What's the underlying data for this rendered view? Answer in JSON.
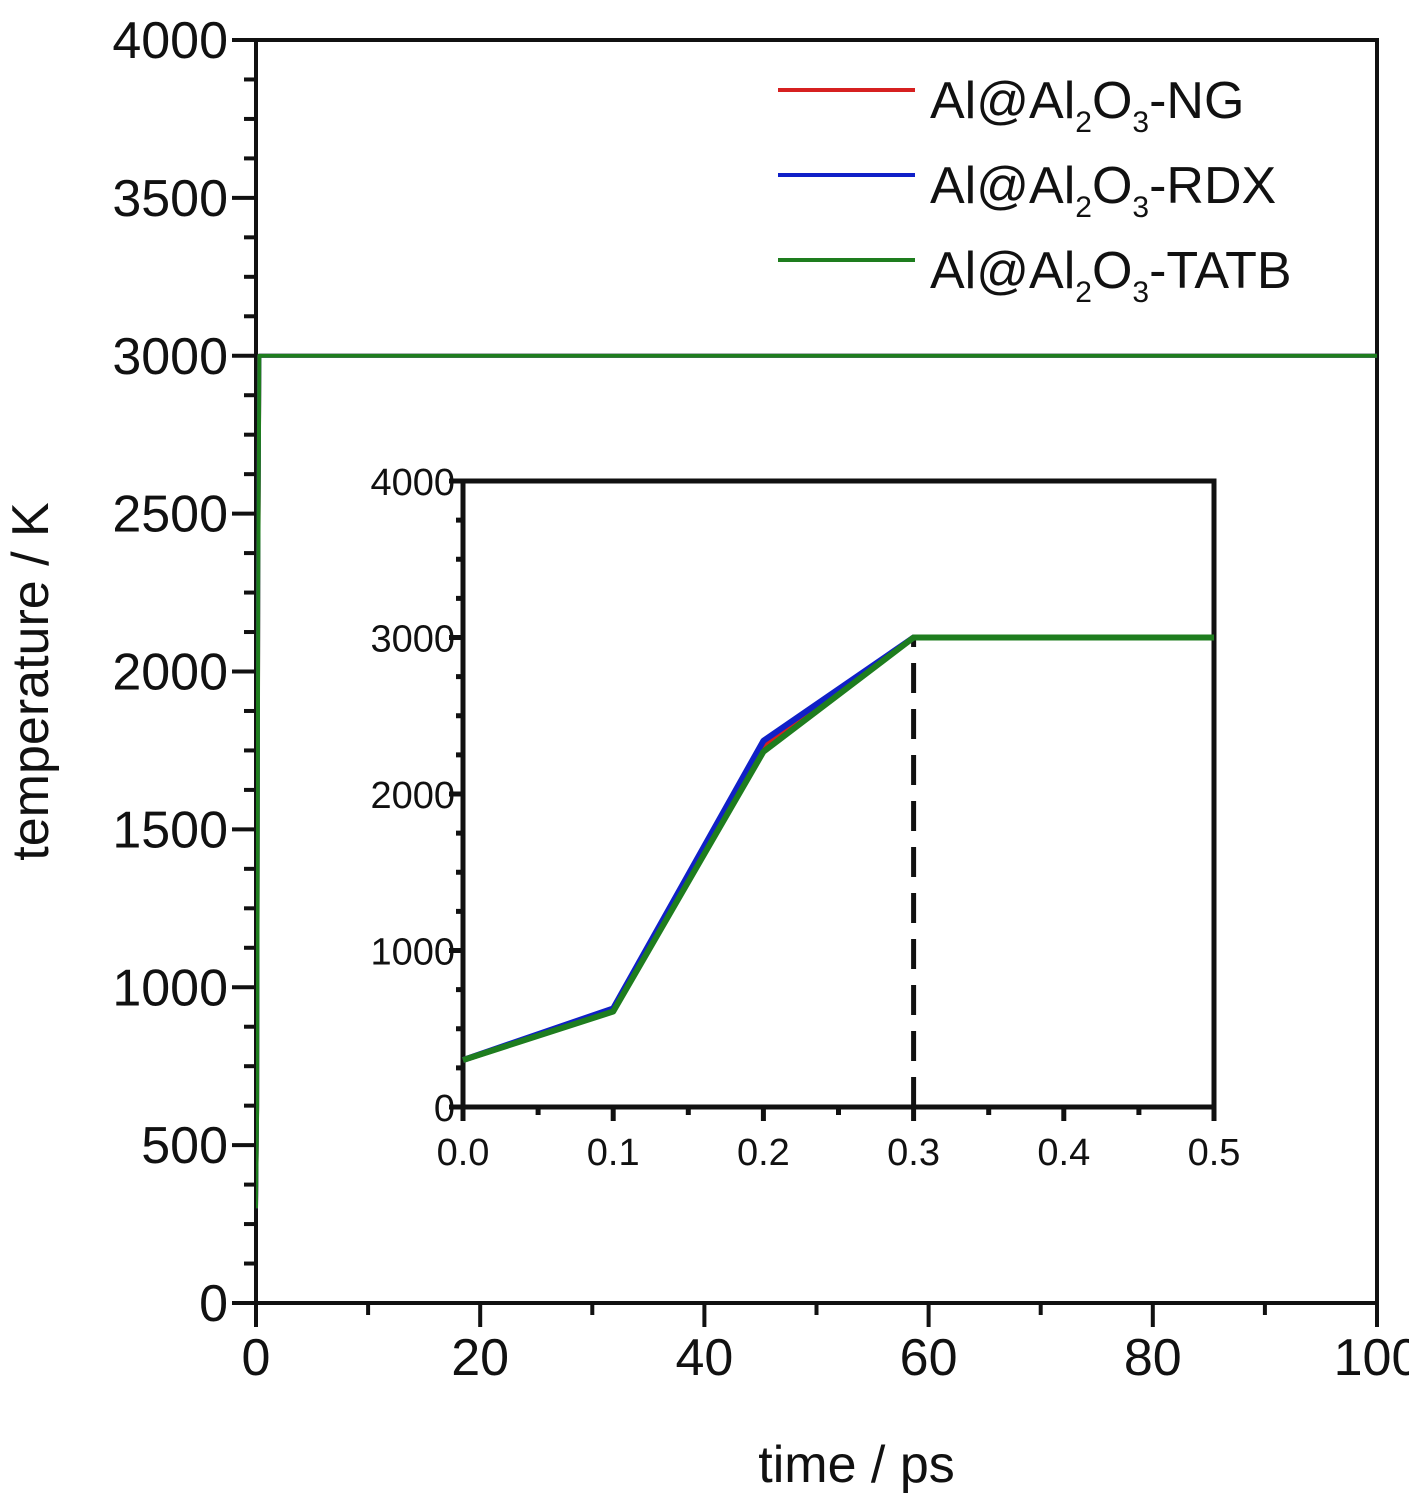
{
  "chart_data": [
    {
      "id": "main",
      "type": "line",
      "xlabel": "time / ps",
      "ylabel": "temperature / K",
      "xlim": [
        0,
        100
      ],
      "ylim": [
        0,
        4000
      ],
      "x_ticks": [
        0,
        20,
        40,
        60,
        80,
        100
      ],
      "x_tick_labels": [
        "0",
        "20",
        "40",
        "60",
        "80",
        "100"
      ],
      "y_ticks": [
        0,
        500,
        1000,
        1500,
        2000,
        2500,
        3000,
        3500,
        4000
      ],
      "y_tick_labels": [
        "0",
        "500",
        "1000",
        "1500",
        "2000",
        "2500",
        "3000",
        "3500",
        "4000"
      ],
      "grid": false,
      "legend_position": "top-right",
      "series": [
        {
          "name": "Al@Al2O3-NG",
          "legend": {
            "pre": "Al@Al",
            "sub1": "2",
            "mid": "O",
            "sub2": "3",
            "post": "-NG"
          },
          "color": "#d62020",
          "x": [
            0,
            0.1,
            0.2,
            0.3,
            1,
            5,
            10,
            20,
            30,
            40,
            50,
            60,
            70,
            80,
            90,
            100
          ],
          "y": [
            300,
            620,
            2300,
            3000,
            3000,
            3000,
            3000,
            3000,
            3000,
            3000,
            3000,
            3000,
            3000,
            3000,
            3000,
            3000
          ]
        },
        {
          "name": "Al@Al2O3-RDX",
          "legend": {
            "pre": "Al@Al",
            "sub1": "2",
            "mid": "O",
            "sub2": "3",
            "post": "-RDX"
          },
          "color": "#1020c8",
          "x": [
            0,
            0.1,
            0.2,
            0.3,
            1,
            5,
            10,
            20,
            30,
            40,
            50,
            60,
            70,
            80,
            90,
            100
          ],
          "y": [
            300,
            630,
            2340,
            3000,
            3000,
            3000,
            3000,
            3000,
            3000,
            3000,
            3000,
            3000,
            3000,
            3000,
            3000,
            3000
          ]
        },
        {
          "name": "Al@Al2O3-TATB",
          "legend": {
            "pre": "Al@Al",
            "sub1": "2",
            "mid": "O",
            "sub2": "3",
            "post": "-TATB"
          },
          "color": "#1e7d1e",
          "x": [
            0,
            0.1,
            0.2,
            0.3,
            1,
            5,
            10,
            20,
            30,
            40,
            50,
            60,
            70,
            80,
            90,
            100
          ],
          "y": [
            300,
            610,
            2270,
            3000,
            3000,
            3000,
            3000,
            3000,
            3000,
            3000,
            3000,
            3000,
            3000,
            3000,
            3000,
            3000
          ]
        }
      ]
    },
    {
      "id": "inset",
      "type": "line",
      "xlabel": "",
      "ylabel": "",
      "xlim": [
        0,
        0.5
      ],
      "ylim": [
        0,
        4000
      ],
      "x_ticks": [
        0.0,
        0.1,
        0.2,
        0.3,
        0.4,
        0.5
      ],
      "x_tick_labels": [
        "0.0",
        "0.1",
        "0.2",
        "0.3",
        "0.4",
        "0.5"
      ],
      "y_ticks": [
        0,
        1000,
        2000,
        3000,
        4000
      ],
      "y_tick_labels": [
        "0",
        "1000",
        "2000",
        "3000",
        "4000"
      ],
      "grid": false,
      "annotations": [
        {
          "type": "vertical-dashed-line",
          "x": 0.3,
          "y_from": 0,
          "y_to": 3000,
          "color": "#111111"
        }
      ],
      "series": [
        {
          "name": "Al@Al2O3-NG",
          "color": "#d62020",
          "x": [
            0,
            0.1,
            0.2,
            0.3,
            0.4,
            0.5
          ],
          "y": [
            300,
            620,
            2300,
            3000,
            3000,
            3000
          ]
        },
        {
          "name": "Al@Al2O3-RDX",
          "color": "#1020c8",
          "x": [
            0,
            0.1,
            0.2,
            0.3,
            0.4,
            0.5
          ],
          "y": [
            300,
            630,
            2340,
            3000,
            3000,
            3000
          ]
        },
        {
          "name": "Al@Al2O3-TATB",
          "color": "#1e7d1e",
          "x": [
            0,
            0.1,
            0.2,
            0.3,
            0.4,
            0.5
          ],
          "y": [
            300,
            610,
            2270,
            3000,
            3000,
            3000
          ]
        }
      ]
    }
  ]
}
